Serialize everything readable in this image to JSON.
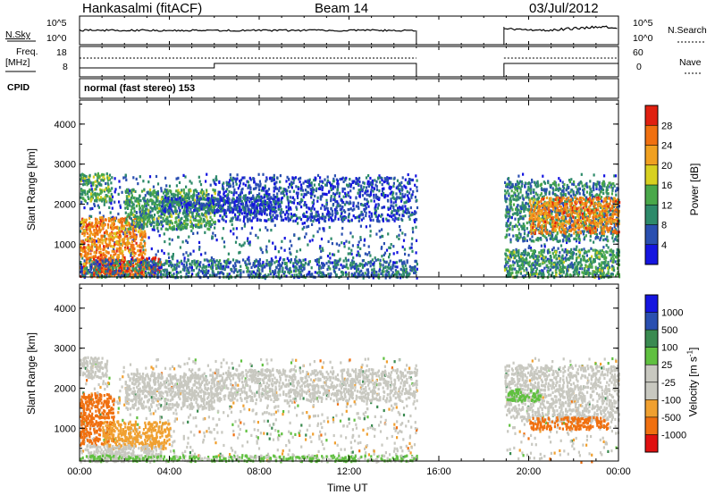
{
  "header": {
    "station": "Hankasalmi (fitACF)",
    "beam": "Beam 14",
    "date": "03/Jul/2012"
  },
  "top_panel": {
    "nsky_label": "N.Sky",
    "nsearch_label": "N.Search",
    "freq_label_line1": "Freq.",
    "freq_label_line2": "[MHz]",
    "nave_label": "Nave",
    "cpid_label": "CPID",
    "cpid_text": "normal (fast stereo) 153",
    "noise_left_ticks": [
      "10^5",
      "10^0"
    ],
    "noise_right_ticks": [
      "10^5",
      "10^0"
    ],
    "freq_ticks": [
      "18",
      "8"
    ],
    "nave_ticks": [
      "60",
      "0"
    ]
  },
  "chart_data": [
    {
      "type": "heatmap",
      "title": "",
      "xlabel": "",
      "ylabel": "Slant Range [km]",
      "colorbar_label": "Power [dB]",
      "colorbar_ticks": [
        "4",
        "8",
        "12",
        "16",
        "20",
        "24",
        "28"
      ],
      "colorbar_colors": [
        "#1515e0",
        "#2a4fb0",
        "#2e8a6a",
        "#4aa84a",
        "#d8d020",
        "#f0a020",
        "#f07010",
        "#e02010"
      ],
      "xlim": [
        "00:00",
        "24:00"
      ],
      "ylim": [
        180,
        4600
      ],
      "yticks": [
        1000,
        2000,
        3000,
        4000
      ],
      "data_gap_hours": [
        15.0,
        18.9
      ],
      "regions": [
        {
          "t0": 0.0,
          "t1": 2.9,
          "r0": 200,
          "r1": 1700,
          "level": 24
        },
        {
          "t0": 0.6,
          "t1": 3.6,
          "r0": 260,
          "r1": 700,
          "level": 28
        },
        {
          "t0": 0.0,
          "t1": 1.4,
          "r0": 2100,
          "r1": 2800,
          "level": 14
        },
        {
          "t0": 2.0,
          "t1": 6.0,
          "r0": 1400,
          "r1": 2400,
          "level": 12
        },
        {
          "t0": 3.6,
          "t1": 9.0,
          "r0": 1800,
          "r1": 2200,
          "level": 6
        },
        {
          "t0": 6.0,
          "t1": 15.0,
          "r0": 1600,
          "r1": 2700,
          "level": 5
        },
        {
          "t0": 0.0,
          "t1": 15.0,
          "r0": 200,
          "r1": 650,
          "level": 8
        },
        {
          "t0": 18.9,
          "t1": 24.0,
          "r0": 1100,
          "r1": 2600,
          "level": 10
        },
        {
          "t0": 20.0,
          "t1": 24.0,
          "r0": 1300,
          "r1": 2200,
          "level": 24
        },
        {
          "t0": 18.9,
          "t1": 24.0,
          "r0": 200,
          "r1": 900,
          "level": 12
        }
      ]
    },
    {
      "type": "heatmap",
      "title": "",
      "xlabel": "Time UT",
      "ylabel": "Slant Range [km]",
      "colorbar_label": "Velocity [m s^-1]",
      "colorbar_ticks": [
        "-1000",
        "-500",
        "-100",
        "-25",
        "25",
        "100",
        "500",
        "1000"
      ],
      "colorbar_colors": [
        "#e01010",
        "#f07010",
        "#f0a030",
        "#c8c8c0",
        "#c8c8c0",
        "#60c040",
        "#3a8a50",
        "#2a4fb0",
        "#1515e0"
      ],
      "xlim": [
        "00:00",
        "24:00"
      ],
      "ylim": [
        180,
        4600
      ],
      "yticks": [
        1000,
        2000,
        3000,
        4000
      ],
      "xticks": [
        "00:00",
        "04:00",
        "08:00",
        "12:00",
        "16:00",
        "20:00",
        "00:00"
      ],
      "data_gap_hours": [
        15.0,
        18.9
      ],
      "regions": [
        {
          "t0": 0.0,
          "t1": 1.5,
          "r0": 600,
          "r1": 1900,
          "vel": -300
        },
        {
          "t0": 1.0,
          "t1": 4.0,
          "r0": 500,
          "r1": 1200,
          "vel": -200
        },
        {
          "t0": 0.2,
          "t1": 3.6,
          "r0": 200,
          "r1": 600,
          "vel": 0
        },
        {
          "t0": 0.0,
          "t1": 1.2,
          "r0": 2300,
          "r1": 2800,
          "vel": 0
        },
        {
          "t0": 2.0,
          "t1": 6.0,
          "r0": 1500,
          "r1": 2400,
          "vel": 0
        },
        {
          "t0": 6.0,
          "t1": 15.0,
          "r0": 1700,
          "r1": 2500,
          "vel": 0
        },
        {
          "t0": 18.9,
          "t1": 24.0,
          "r0": 1200,
          "r1": 2600,
          "vel": 0
        },
        {
          "t0": 20.0,
          "t1": 23.5,
          "r0": 1000,
          "r1": 1300,
          "vel": -500
        },
        {
          "t0": 19.0,
          "t1": 20.5,
          "r0": 1700,
          "r1": 2000,
          "vel": 100
        },
        {
          "t0": 0.0,
          "t1": 15.0,
          "r0": 200,
          "r1": 350,
          "vel": 60
        }
      ]
    }
  ]
}
